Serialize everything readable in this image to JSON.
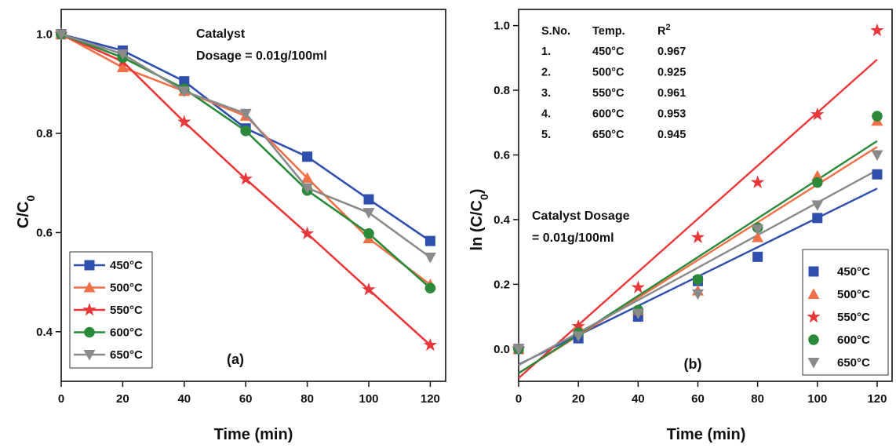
{
  "colors": {
    "450": "#2e4fad",
    "500": "#f07048",
    "550": "#e8383a",
    "600": "#2a8a3a",
    "650": "#8a8a8a"
  },
  "chart_data": [
    {
      "panel": "a",
      "type": "line",
      "panel_label": "(a)",
      "xlabel": "Time (min)",
      "ylabel": "C/C0",
      "xlim": [
        0,
        125
      ],
      "ylim": [
        0.3,
        1.05
      ],
      "xticks": [
        "0",
        "20",
        "40",
        "60",
        "80",
        "100",
        "120"
      ],
      "yticks": [
        "0.4",
        "0.6",
        "0.8",
        "1.0"
      ],
      "annotation": [
        "Catalyst",
        "Dosage = 0.01g/100ml"
      ],
      "legend_position": "bottom-left",
      "x": [
        0,
        20,
        40,
        60,
        80,
        100,
        120
      ],
      "series": [
        {
          "name": "450°C",
          "marker": "square",
          "color_key": "450",
          "values": [
            1.0,
            0.967,
            0.905,
            0.81,
            0.753,
            0.667,
            0.583
          ]
        },
        {
          "name": "500°C",
          "marker": "triangle",
          "color_key": "500",
          "values": [
            1.0,
            0.933,
            0.885,
            0.835,
            0.71,
            0.588,
            0.495
          ]
        },
        {
          "name": "550°C",
          "marker": "star",
          "color_key": "550",
          "values": [
            1.0,
            0.945,
            0.823,
            0.708,
            0.598,
            0.485,
            0.373
          ]
        },
        {
          "name": "600°C",
          "marker": "circle",
          "color_key": "600",
          "values": [
            1.0,
            0.953,
            0.89,
            0.805,
            0.685,
            0.598,
            0.488
          ]
        },
        {
          "name": "650°C",
          "marker": "inverted-triangle",
          "color_key": "650",
          "values": [
            1.0,
            0.96,
            0.885,
            0.84,
            0.69,
            0.64,
            0.55
          ]
        }
      ]
    },
    {
      "panel": "b",
      "type": "scatter",
      "panel_label": "(b)",
      "xlabel": "Time (min)",
      "ylabel": "ln (C/C0)",
      "xlim": [
        0,
        125
      ],
      "ylim": [
        -0.1,
        1.05
      ],
      "xticks": [
        "0",
        "20",
        "40",
        "60",
        "80",
        "100",
        "120"
      ],
      "yticks": [
        "0.0",
        "0.2",
        "0.4",
        "0.6",
        "0.8",
        "1.0"
      ],
      "annotation": [
        "Catalyst Dosage",
        "= 0.01g/100ml"
      ],
      "legend_position": "bottom-right",
      "table": {
        "headers": [
          "S.No.",
          "Temp.",
          "R²"
        ],
        "rows": [
          [
            "1.",
            "450°C",
            "0.967"
          ],
          [
            "2.",
            "500°C",
            "0.925"
          ],
          [
            "3.",
            "550°C",
            "0.961"
          ],
          [
            "4.",
            "600°C",
            "0.953"
          ],
          [
            "5.",
            "650°C",
            "0.945"
          ]
        ]
      },
      "x": [
        0,
        20,
        40,
        60,
        80,
        100,
        120
      ],
      "series": [
        {
          "name": "450°C",
          "marker": "square",
          "color_key": "450",
          "values": [
            0.0,
            0.033,
            0.1,
            0.21,
            0.285,
            0.405,
            0.54
          ],
          "fit": [
            -0.048,
            0.496
          ]
        },
        {
          "name": "500°C",
          "marker": "triangle",
          "color_key": "500",
          "values": [
            0.0,
            0.07,
            0.12,
            0.18,
            0.345,
            0.535,
            0.705
          ],
          "fit": [
            -0.075,
            0.625
          ]
        },
        {
          "name": "550°C",
          "marker": "star",
          "color_key": "550",
          "values": [
            0.0,
            0.07,
            0.19,
            0.345,
            0.515,
            0.725,
            0.985
          ],
          "fit": [
            -0.09,
            0.895
          ]
        },
        {
          "name": "600°C",
          "marker": "circle",
          "color_key": "600",
          "values": [
            0.0,
            0.05,
            0.12,
            0.215,
            0.375,
            0.515,
            0.72
          ],
          "fit": [
            -0.075,
            0.643
          ]
        },
        {
          "name": "650°C",
          "marker": "inverted-triangle",
          "color_key": "650",
          "values": [
            0.0,
            0.04,
            0.11,
            0.17,
            0.37,
            0.445,
            0.6
          ],
          "fit": [
            -0.05,
            0.553
          ]
        }
      ]
    }
  ]
}
